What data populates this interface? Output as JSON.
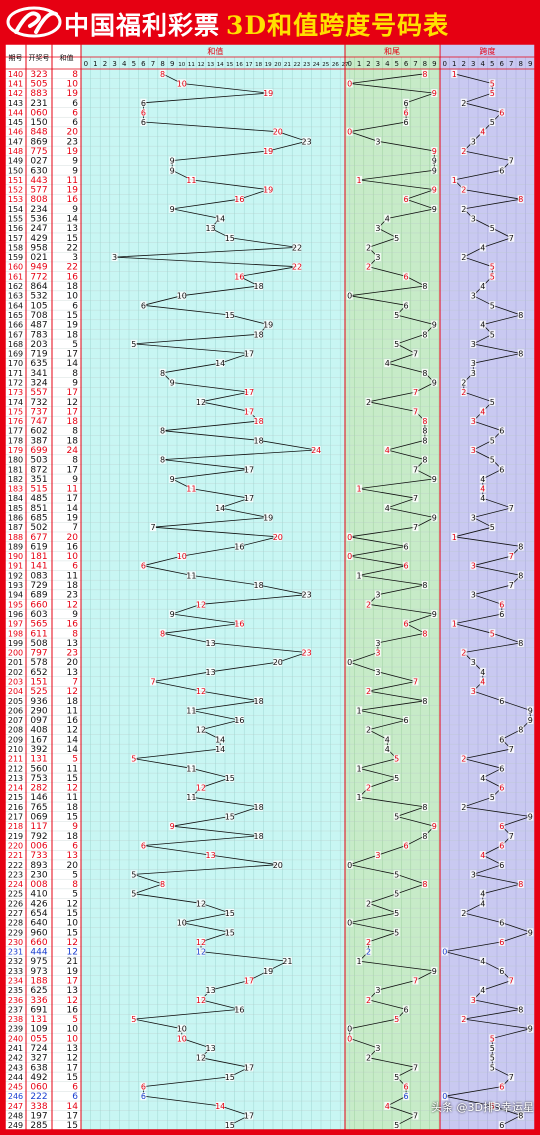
{
  "header": {
    "brand": "中国福利彩票",
    "title": "3D和值跨度号码表"
  },
  "columns": {
    "period": "期号",
    "number": "开奖号",
    "sum": "和值",
    "sum_chart": "和值",
    "tail_chart": "和尾",
    "span_chart": "跨度"
  },
  "watermark": "头条 @3D排3幸运星",
  "colors": {
    "red": "#e60012",
    "blue": "#1a3fd0",
    "black": "#111111",
    "sum_bg": "#c8f6f3",
    "tail_bg": "#c7ebc8",
    "span_bg": "#c9c9f1"
  },
  "chart_data": {
    "type": "table",
    "sum_range": [
      0,
      27
    ],
    "tail_range": [
      0,
      9
    ],
    "span_range": [
      0,
      9
    ],
    "rows": [
      {
        "period": "140",
        "number": "323",
        "sum": 8,
        "tail": 8,
        "span": 1,
        "color": "red"
      },
      {
        "period": "141",
        "number": "505",
        "sum": 10,
        "tail": 0,
        "span": 5,
        "color": "red"
      },
      {
        "period": "142",
        "number": "883",
        "sum": 19,
        "tail": 9,
        "span": 5,
        "color": "red"
      },
      {
        "period": "143",
        "number": "231",
        "sum": 6,
        "tail": 6,
        "span": 2,
        "color": "black"
      },
      {
        "period": "144",
        "number": "060",
        "sum": 6,
        "tail": 6,
        "span": 6,
        "color": "red"
      },
      {
        "period": "145",
        "number": "150",
        "sum": 6,
        "tail": 6,
        "span": 5,
        "color": "black"
      },
      {
        "period": "146",
        "number": "848",
        "sum": 20,
        "tail": 0,
        "span": 4,
        "color": "red"
      },
      {
        "period": "147",
        "number": "869",
        "sum": 23,
        "tail": 3,
        "span": 3,
        "color": "black"
      },
      {
        "period": "148",
        "number": "775",
        "sum": 19,
        "tail": 9,
        "span": 2,
        "color": "red"
      },
      {
        "period": "149",
        "number": "027",
        "sum": 9,
        "tail": 9,
        "span": 7,
        "color": "black"
      },
      {
        "period": "150",
        "number": "630",
        "sum": 9,
        "tail": 9,
        "span": 6,
        "color": "black"
      },
      {
        "period": "151",
        "number": "443",
        "sum": 11,
        "tail": 1,
        "span": 1,
        "color": "red"
      },
      {
        "period": "152",
        "number": "577",
        "sum": 19,
        "tail": 9,
        "span": 2,
        "color": "red"
      },
      {
        "period": "153",
        "number": "808",
        "sum": 16,
        "tail": 6,
        "span": 8,
        "color": "red"
      },
      {
        "period": "154",
        "number": "234",
        "sum": 9,
        "tail": 9,
        "span": 2,
        "color": "black"
      },
      {
        "period": "155",
        "number": "536",
        "sum": 14,
        "tail": 4,
        "span": 3,
        "color": "black"
      },
      {
        "period": "156",
        "number": "247",
        "sum": 13,
        "tail": 3,
        "span": 5,
        "color": "black"
      },
      {
        "period": "157",
        "number": "429",
        "sum": 15,
        "tail": 5,
        "span": 7,
        "color": "black"
      },
      {
        "period": "158",
        "number": "958",
        "sum": 22,
        "tail": 2,
        "span": 4,
        "color": "black"
      },
      {
        "period": "159",
        "number": "021",
        "sum": 3,
        "tail": 3,
        "span": 2,
        "color": "black"
      },
      {
        "period": "160",
        "number": "949",
        "sum": 22,
        "tail": 2,
        "span": 5,
        "color": "red"
      },
      {
        "period": "161",
        "number": "772",
        "sum": 16,
        "tail": 6,
        "span": 5,
        "color": "red"
      },
      {
        "period": "162",
        "number": "864",
        "sum": 18,
        "tail": 8,
        "span": 4,
        "color": "black"
      },
      {
        "period": "163",
        "number": "532",
        "sum": 10,
        "tail": 0,
        "span": 3,
        "color": "black"
      },
      {
        "period": "164",
        "number": "105",
        "sum": 6,
        "tail": 6,
        "span": 5,
        "color": "black"
      },
      {
        "period": "165",
        "number": "708",
        "sum": 15,
        "tail": 5,
        "span": 8,
        "color": "black"
      },
      {
        "period": "166",
        "number": "487",
        "sum": 19,
        "tail": 9,
        "span": 4,
        "color": "black"
      },
      {
        "period": "167",
        "number": "783",
        "sum": 18,
        "tail": 8,
        "span": 5,
        "color": "black"
      },
      {
        "period": "168",
        "number": "203",
        "sum": 5,
        "tail": 5,
        "span": 3,
        "color": "black"
      },
      {
        "period": "169",
        "number": "719",
        "sum": 17,
        "tail": 7,
        "span": 8,
        "color": "black"
      },
      {
        "period": "170",
        "number": "635",
        "sum": 14,
        "tail": 4,
        "span": 3,
        "color": "black"
      },
      {
        "period": "171",
        "number": "341",
        "sum": 8,
        "tail": 8,
        "span": 3,
        "color": "black"
      },
      {
        "period": "172",
        "number": "324",
        "sum": 9,
        "tail": 9,
        "span": 2,
        "color": "black"
      },
      {
        "period": "173",
        "number": "557",
        "sum": 17,
        "tail": 7,
        "span": 2,
        "color": "red"
      },
      {
        "period": "174",
        "number": "732",
        "sum": 12,
        "tail": 2,
        "span": 5,
        "color": "black"
      },
      {
        "period": "175",
        "number": "737",
        "sum": 17,
        "tail": 7,
        "span": 4,
        "color": "red"
      },
      {
        "period": "176",
        "number": "747",
        "sum": 18,
        "tail": 8,
        "span": 3,
        "color": "red"
      },
      {
        "period": "177",
        "number": "602",
        "sum": 8,
        "tail": 8,
        "span": 6,
        "color": "black"
      },
      {
        "period": "178",
        "number": "387",
        "sum": 18,
        "tail": 8,
        "span": 5,
        "color": "black"
      },
      {
        "period": "179",
        "number": "699",
        "sum": 24,
        "tail": 4,
        "span": 3,
        "color": "red"
      },
      {
        "period": "180",
        "number": "503",
        "sum": 8,
        "tail": 8,
        "span": 5,
        "color": "black"
      },
      {
        "period": "181",
        "number": "872",
        "sum": 17,
        "tail": 7,
        "span": 6,
        "color": "black"
      },
      {
        "period": "182",
        "number": "351",
        "sum": 9,
        "tail": 9,
        "span": 4,
        "color": "black"
      },
      {
        "period": "183",
        "number": "515",
        "sum": 11,
        "tail": 1,
        "span": 4,
        "color": "red"
      },
      {
        "period": "184",
        "number": "485",
        "sum": 17,
        "tail": 7,
        "span": 4,
        "color": "black"
      },
      {
        "period": "185",
        "number": "851",
        "sum": 14,
        "tail": 4,
        "span": 7,
        "color": "black"
      },
      {
        "period": "186",
        "number": "685",
        "sum": 19,
        "tail": 9,
        "span": 3,
        "color": "black"
      },
      {
        "period": "187",
        "number": "502",
        "sum": 7,
        "tail": 7,
        "span": 5,
        "color": "black"
      },
      {
        "period": "188",
        "number": "677",
        "sum": 20,
        "tail": 0,
        "span": 1,
        "color": "red"
      },
      {
        "period": "189",
        "number": "619",
        "sum": 16,
        "tail": 6,
        "span": 8,
        "color": "black"
      },
      {
        "period": "190",
        "number": "181",
        "sum": 10,
        "tail": 0,
        "span": 7,
        "color": "red"
      },
      {
        "period": "191",
        "number": "141",
        "sum": 6,
        "tail": 6,
        "span": 3,
        "color": "red"
      },
      {
        "period": "192",
        "number": "083",
        "sum": 11,
        "tail": 1,
        "span": 8,
        "color": "black"
      },
      {
        "period": "193",
        "number": "729",
        "sum": 18,
        "tail": 8,
        "span": 7,
        "color": "black"
      },
      {
        "period": "194",
        "number": "689",
        "sum": 23,
        "tail": 3,
        "span": 3,
        "color": "black"
      },
      {
        "period": "195",
        "number": "660",
        "sum": 12,
        "tail": 2,
        "span": 6,
        "color": "red"
      },
      {
        "period": "196",
        "number": "603",
        "sum": 9,
        "tail": 9,
        "span": 6,
        "color": "black"
      },
      {
        "period": "197",
        "number": "565",
        "sum": 16,
        "tail": 6,
        "span": 1,
        "color": "red"
      },
      {
        "period": "198",
        "number": "611",
        "sum": 8,
        "tail": 8,
        "span": 5,
        "color": "red"
      },
      {
        "period": "199",
        "number": "508",
        "sum": 13,
        "tail": 3,
        "span": 8,
        "color": "black"
      },
      {
        "period": "200",
        "number": "797",
        "sum": 23,
        "tail": 3,
        "span": 2,
        "color": "red"
      },
      {
        "period": "201",
        "number": "578",
        "sum": 20,
        "tail": 0,
        "span": 3,
        "color": "black"
      },
      {
        "period": "202",
        "number": "652",
        "sum": 13,
        "tail": 3,
        "span": 4,
        "color": "black"
      },
      {
        "period": "203",
        "number": "151",
        "sum": 7,
        "tail": 7,
        "span": 4,
        "color": "red"
      },
      {
        "period": "204",
        "number": "525",
        "sum": 12,
        "tail": 2,
        "span": 3,
        "color": "red"
      },
      {
        "period": "205",
        "number": "936",
        "sum": 18,
        "tail": 8,
        "span": 6,
        "color": "black"
      },
      {
        "period": "206",
        "number": "290",
        "sum": 11,
        "tail": 1,
        "span": 9,
        "color": "black"
      },
      {
        "period": "207",
        "number": "097",
        "sum": 16,
        "tail": 6,
        "span": 9,
        "color": "black"
      },
      {
        "period": "208",
        "number": "408",
        "sum": 12,
        "tail": 2,
        "span": 8,
        "color": "black"
      },
      {
        "period": "209",
        "number": "167",
        "sum": 14,
        "tail": 4,
        "span": 6,
        "color": "black"
      },
      {
        "period": "210",
        "number": "392",
        "sum": 14,
        "tail": 4,
        "span": 7,
        "color": "black"
      },
      {
        "period": "211",
        "number": "131",
        "sum": 5,
        "tail": 5,
        "span": 2,
        "color": "red"
      },
      {
        "period": "212",
        "number": "560",
        "sum": 11,
        "tail": 1,
        "span": 6,
        "color": "black"
      },
      {
        "period": "213",
        "number": "753",
        "sum": 15,
        "tail": 5,
        "span": 4,
        "color": "black"
      },
      {
        "period": "214",
        "number": "282",
        "sum": 12,
        "tail": 2,
        "span": 6,
        "color": "red"
      },
      {
        "period": "215",
        "number": "146",
        "sum": 11,
        "tail": 1,
        "span": 5,
        "color": "black"
      },
      {
        "period": "216",
        "number": "765",
        "sum": 18,
        "tail": 8,
        "span": 2,
        "color": "black"
      },
      {
        "period": "217",
        "number": "069",
        "sum": 15,
        "tail": 5,
        "span": 9,
        "color": "black"
      },
      {
        "period": "218",
        "number": "117",
        "sum": 9,
        "tail": 9,
        "span": 6,
        "color": "red"
      },
      {
        "period": "219",
        "number": "792",
        "sum": 18,
        "tail": 8,
        "span": 7,
        "color": "black"
      },
      {
        "period": "220",
        "number": "006",
        "sum": 6,
        "tail": 6,
        "span": 6,
        "color": "red"
      },
      {
        "period": "221",
        "number": "733",
        "sum": 13,
        "tail": 3,
        "span": 4,
        "color": "red"
      },
      {
        "period": "222",
        "number": "893",
        "sum": 20,
        "tail": 0,
        "span": 6,
        "color": "black"
      },
      {
        "period": "223",
        "number": "230",
        "sum": 5,
        "tail": 5,
        "span": 3,
        "color": "black"
      },
      {
        "period": "224",
        "number": "008",
        "sum": 8,
        "tail": 8,
        "span": 8,
        "color": "red"
      },
      {
        "period": "225",
        "number": "410",
        "sum": 5,
        "tail": 5,
        "span": 4,
        "color": "black"
      },
      {
        "period": "226",
        "number": "426",
        "sum": 12,
        "tail": 2,
        "span": 4,
        "color": "black"
      },
      {
        "period": "227",
        "number": "654",
        "sum": 15,
        "tail": 5,
        "span": 2,
        "color": "black"
      },
      {
        "period": "228",
        "number": "640",
        "sum": 10,
        "tail": 0,
        "span": 6,
        "color": "black"
      },
      {
        "period": "229",
        "number": "960",
        "sum": 15,
        "tail": 5,
        "span": 9,
        "color": "black"
      },
      {
        "period": "230",
        "number": "660",
        "sum": 12,
        "tail": 2,
        "span": 6,
        "color": "red"
      },
      {
        "period": "231",
        "number": "444",
        "sum": 12,
        "tail": 2,
        "span": 0,
        "color": "blue"
      },
      {
        "period": "232",
        "number": "975",
        "sum": 21,
        "tail": 1,
        "span": 4,
        "color": "black"
      },
      {
        "period": "233",
        "number": "973",
        "sum": 19,
        "tail": 9,
        "span": 6,
        "color": "black"
      },
      {
        "period": "234",
        "number": "188",
        "sum": 17,
        "tail": 7,
        "span": 7,
        "color": "red"
      },
      {
        "period": "235",
        "number": "625",
        "sum": 13,
        "tail": 3,
        "span": 4,
        "color": "black"
      },
      {
        "period": "236",
        "number": "336",
        "sum": 12,
        "tail": 2,
        "span": 3,
        "color": "red"
      },
      {
        "period": "237",
        "number": "691",
        "sum": 16,
        "tail": 6,
        "span": 8,
        "color": "black"
      },
      {
        "period": "238",
        "number": "131",
        "sum": 5,
        "tail": 5,
        "span": 2,
        "color": "red"
      },
      {
        "period": "239",
        "number": "109",
        "sum": 10,
        "tail": 0,
        "span": 9,
        "color": "black"
      },
      {
        "period": "240",
        "number": "055",
        "sum": 10,
        "tail": 0,
        "span": 5,
        "color": "red"
      },
      {
        "period": "241",
        "number": "724",
        "sum": 13,
        "tail": 3,
        "span": 5,
        "color": "black"
      },
      {
        "period": "242",
        "number": "327",
        "sum": 12,
        "tail": 2,
        "span": 5,
        "color": "black"
      },
      {
        "period": "243",
        "number": "638",
        "sum": 17,
        "tail": 7,
        "span": 5,
        "color": "black"
      },
      {
        "period": "244",
        "number": "492",
        "sum": 15,
        "tail": 5,
        "span": 7,
        "color": "black"
      },
      {
        "period": "245",
        "number": "060",
        "sum": 6,
        "tail": 6,
        "span": 6,
        "color": "red"
      },
      {
        "period": "246",
        "number": "222",
        "sum": 6,
        "tail": 6,
        "span": 0,
        "color": "blue"
      },
      {
        "period": "247",
        "number": "338",
        "sum": 14,
        "tail": 4,
        "span": 5,
        "color": "red"
      },
      {
        "period": "248",
        "number": "197",
        "sum": 17,
        "tail": 7,
        "span": 8,
        "color": "black"
      },
      {
        "period": "249",
        "number": "285",
        "sum": 15,
        "tail": 5,
        "span": 6,
        "color": "black"
      }
    ]
  }
}
